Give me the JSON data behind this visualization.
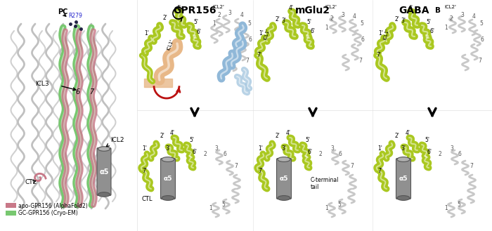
{
  "color_apo": "#c87888",
  "color_gc": "#78c870",
  "color_lime": "#aac820",
  "color_gray_helix": "#b0b0b0",
  "color_peach": "#e8b888",
  "color_blue": "#90b8d8",
  "color_blue2": "#a8c8e0",
  "color_gray_dark": "#787878",
  "color_gray_mid": "#989898",
  "color_gray_light": "#cccccc",
  "color_bg": "#ffffff",
  "color_red_arrow": "#bb1111",
  "legend_apo": "apo-GPR156 (AlphaFold2)",
  "legend_gc": "GC-GPR156 (Cryo-EM)",
  "title_gpr156": "GPR156",
  "title_mglu2": "mGlu2",
  "label_alpha5": "α5",
  "label_ctl": "CTL",
  "label_icl2": "ICL2",
  "label_icl3": "ICL3",
  "label_pc": "PC",
  "label_r279": "R279",
  "label_ctail": "C-terminal\ntail"
}
